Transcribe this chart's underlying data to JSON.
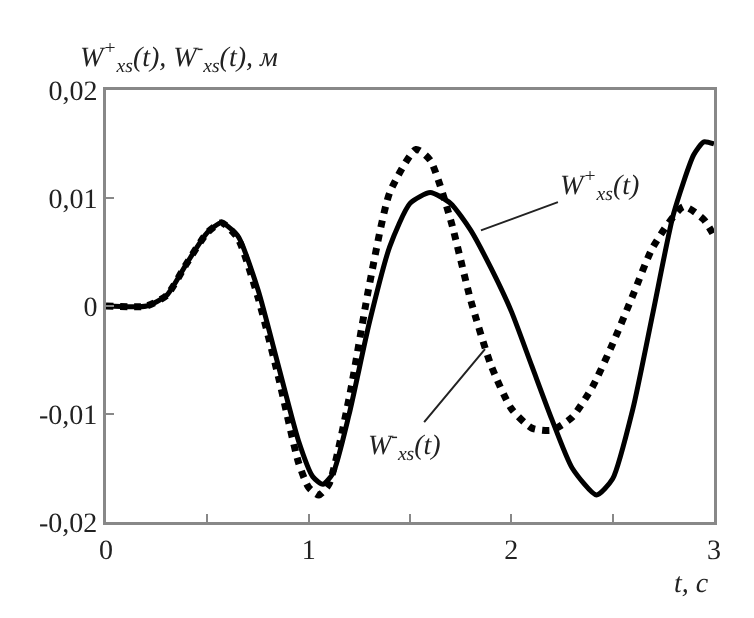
{
  "chart_data": {
    "type": "line",
    "title": "W$^{+}$$_{xs}$(t), W$^{-}$$_{xs}$(t), м",
    "xlabel": "t, с",
    "xlim": [
      0,
      3
    ],
    "xticks": [
      0,
      {
        "value": 0.5,
        "label": null
      },
      1,
      {
        "value": 1.5,
        "label": null
      },
      2,
      {
        "value": 2.5,
        "label": null
      },
      3
    ],
    "ylim": [
      -0.02,
      0.02
    ],
    "yticks": [
      {
        "value": -0.02,
        "label": "-0,02"
      },
      {
        "value": -0.01,
        "label": "-0,01"
      },
      0,
      {
        "value": 0.01,
        "label": "0,01"
      },
      {
        "value": 0.02,
        "label": "0,02"
      }
    ],
    "grid": false,
    "marker": "none",
    "annotations": [
      {
        "text": "W$^{+}$$_{xs}$(t)",
        "x": 1.85,
        "y": 0.007
      },
      {
        "text": "W$^{-}$$_{xs}$(t)",
        "x": 1.87,
        "y": -0.004
      }
    ],
    "series": [
      {
        "color": "#000000",
        "line_style": "solid",
        "x": [
          0,
          0.2,
          0.3,
          0.4,
          0.5,
          0.57,
          0.65,
          0.75,
          0.85,
          0.95,
          1.02,
          1.07,
          1.12,
          1.2,
          1.3,
          1.4,
          1.5,
          1.6,
          1.7,
          1.8,
          1.9,
          2.0,
          2.1,
          2.2,
          2.3,
          2.42,
          2.5,
          2.6,
          2.7,
          2.8,
          2.9,
          2.95,
          3.0
        ],
        "values": [
          0,
          0,
          0.001,
          0.004,
          0.0068,
          0.0077,
          0.0065,
          0.0015,
          -0.0055,
          -0.0125,
          -0.0158,
          -0.0165,
          -0.0155,
          -0.01,
          -0.0015,
          0.0055,
          0.0095,
          0.0105,
          0.0095,
          0.007,
          0.0035,
          -0.0005,
          -0.0055,
          -0.0105,
          -0.015,
          -0.0175,
          -0.016,
          -0.0095,
          -0.0005,
          0.0085,
          0.014,
          0.0152,
          0.015
        ]
      },
      {
        "color": "#000000",
        "line_style": "dotted",
        "x": [
          0,
          0.2,
          0.3,
          0.4,
          0.5,
          0.57,
          0.65,
          0.75,
          0.85,
          0.95,
          1.0,
          1.05,
          1.1,
          1.2,
          1.3,
          1.4,
          1.53,
          1.6,
          1.7,
          1.8,
          1.9,
          2.0,
          2.1,
          2.2,
          2.3,
          2.4,
          2.5,
          2.6,
          2.7,
          2.85,
          2.95,
          3.0
        ],
        "values": [
          0,
          0,
          0.001,
          0.004,
          0.0068,
          0.0077,
          0.0063,
          0.0008,
          -0.0065,
          -0.0145,
          -0.0168,
          -0.0175,
          -0.0165,
          -0.0085,
          0.002,
          0.0105,
          0.0145,
          0.0135,
          0.008,
          0.0005,
          -0.0055,
          -0.0095,
          -0.0113,
          -0.0115,
          -0.0103,
          -0.0075,
          -0.0035,
          0.001,
          0.0055,
          0.0092,
          0.008,
          0.0065
        ]
      }
    ]
  }
}
